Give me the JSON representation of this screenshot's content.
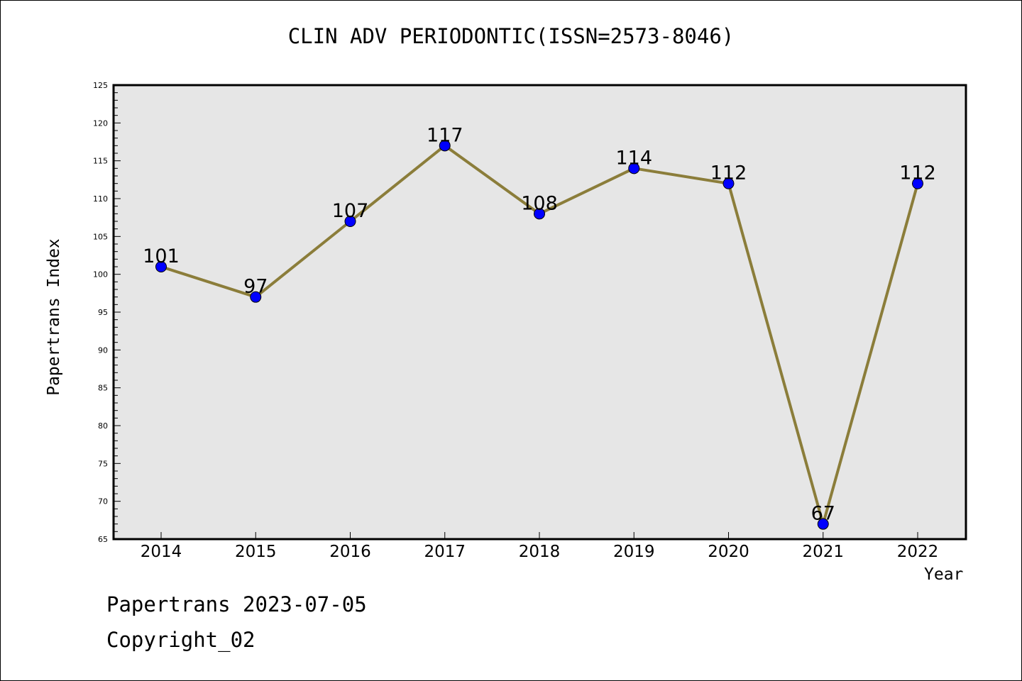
{
  "chart_data": {
    "type": "line",
    "title": "CLIN ADV PERIODONTIC(ISSN=2573-8046)",
    "xlabel": "Year",
    "ylabel": "Papertrans Index",
    "categories": [
      "2014",
      "2015",
      "2016",
      "2017",
      "2018",
      "2019",
      "2020",
      "2021",
      "2022"
    ],
    "series": [
      {
        "values": [
          101,
          97,
          107,
          117,
          108,
          114,
          112,
          67,
          112
        ],
        "line_color": "#8b7d3a",
        "marker_color": "#0000ff"
      }
    ],
    "ylim": [
      65,
      125
    ],
    "yticks": [
      65,
      70,
      75,
      80,
      85,
      90,
      95,
      100,
      105,
      110,
      115,
      120,
      125
    ],
    "plot_background": "#e6e6e6",
    "grid": false,
    "data_labels": true
  },
  "footer": {
    "date_line": "Papertrans 2023-07-05",
    "copyright_line": "Copyright_02"
  }
}
